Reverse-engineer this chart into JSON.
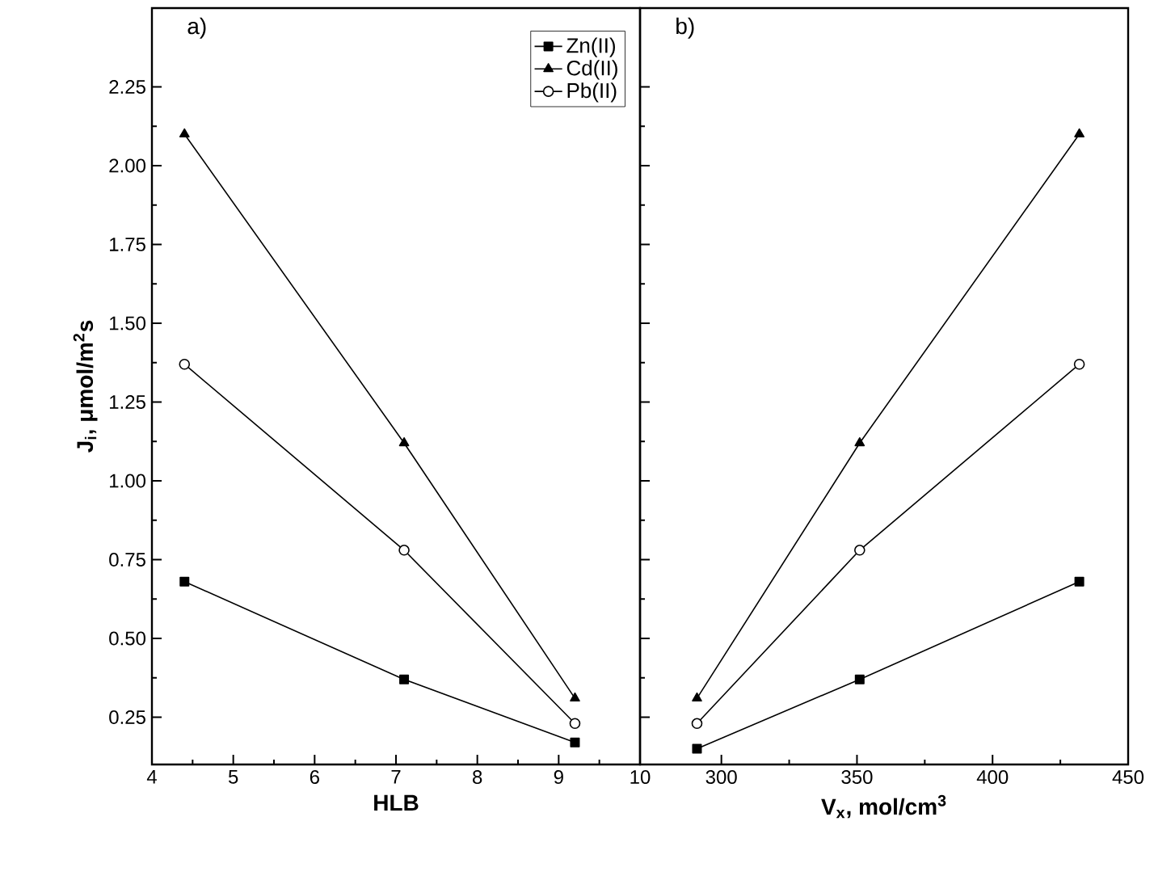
{
  "chart_data": [
    {
      "type": "line",
      "xlabel": "HLB",
      "ylabel": "J$_{i}$, μmol/m$^{2}$s",
      "annotations": [
        "a)"
      ],
      "x": [
        4.4,
        7.1,
        9.2
      ],
      "series": [
        {
          "name": "Zn(II)",
          "color": "#000000",
          "marker": "square",
          "values": [
            0.68,
            0.37,
            0.17
          ]
        },
        {
          "name": "Cd(II)",
          "color": "#000000",
          "marker": "triangle",
          "values": [
            2.1,
            1.12,
            0.31
          ]
        },
        {
          "name": "Pb(II)",
          "color": "#000000",
          "marker": "circle",
          "values": [
            1.37,
            0.78,
            0.23
          ]
        }
      ],
      "xlim": [
        4,
        10
      ],
      "xticks": [
        4,
        5,
        6,
        7,
        8,
        9,
        10
      ],
      "ylim": [
        0.1,
        2.5
      ],
      "yticks": [
        {
          "value": 0.25,
          "label": "0.25"
        },
        {
          "value": 0.5,
          "label": "0.50"
        },
        {
          "value": 0.75,
          "label": "0.75"
        },
        {
          "value": 1.0,
          "label": "1.00"
        },
        {
          "value": 1.25,
          "label": "1.25"
        },
        {
          "value": 1.5,
          "label": "1.50"
        },
        {
          "value": 1.75,
          "label": "1.75"
        },
        {
          "value": 2.0,
          "label": "2.00"
        },
        {
          "value": 2.25,
          "label": "2.25"
        }
      ],
      "legend": "top right",
      "grid": false,
      "line_style": "solid"
    },
    {
      "type": "line",
      "xlabel": "V$_{x}$, mol/cm$^{3}$",
      "annotations": [
        "b)"
      ],
      "x": [
        291,
        351,
        432
      ],
      "series": [
        {
          "color": "#000000",
          "marker": "square",
          "values": [
            0.15,
            0.37,
            0.68
          ]
        },
        {
          "color": "#000000",
          "marker": "triangle",
          "values": [
            0.31,
            1.12,
            2.1
          ]
        },
        {
          "color": "#000000",
          "marker": "circle",
          "values": [
            0.23,
            0.78,
            1.37
          ]
        }
      ],
      "xlim": [
        270,
        450
      ],
      "xticks": [
        300,
        350,
        400,
        450
      ],
      "ylim": [
        0.1,
        2.5
      ],
      "yticks": [
        {
          "value": 0.25,
          "label": null
        },
        {
          "value": 0.5,
          "label": null
        },
        {
          "value": 0.75,
          "label": null
        },
        {
          "value": 1.0,
          "label": null
        },
        {
          "value": 1.25,
          "label": null
        },
        {
          "value": 1.5,
          "label": null
        },
        {
          "value": 1.75,
          "label": null
        },
        {
          "value": 2.0,
          "label": null
        },
        {
          "value": 2.25,
          "label": null
        }
      ],
      "tick_labels": "x",
      "legend": false,
      "grid": false,
      "line_style": "solid"
    }
  ]
}
